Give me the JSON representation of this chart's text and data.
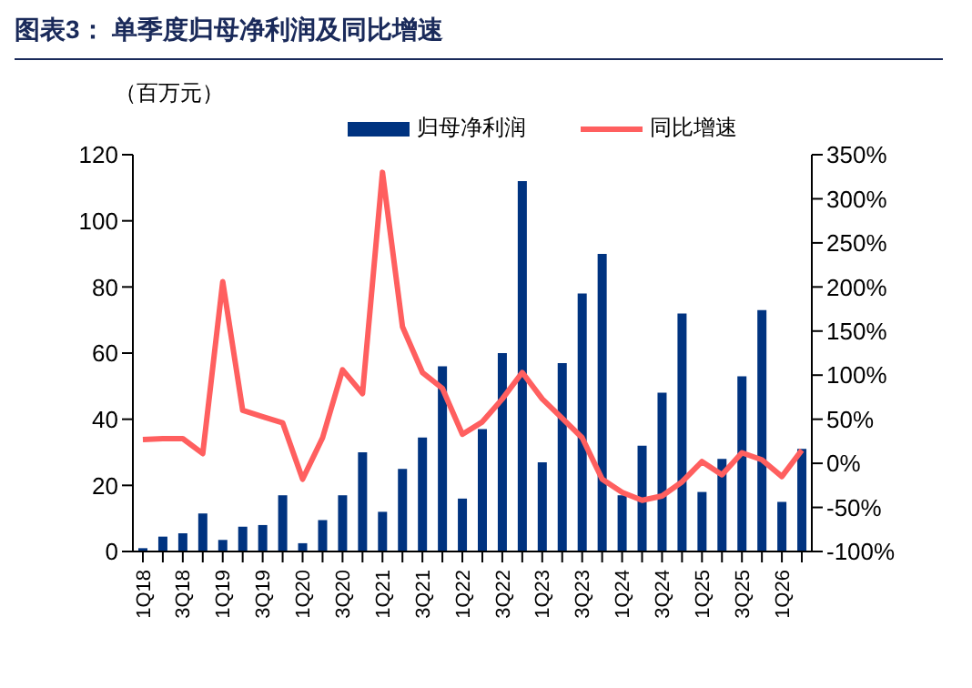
{
  "chart_data": {
    "type": "bar",
    "title": "图表3：  单季度归母净利润及同比增速",
    "ylabel": "（百万元）",
    "categories": [
      "1Q18",
      null,
      "3Q18",
      null,
      "1Q19",
      null,
      "3Q19",
      null,
      "1Q20",
      null,
      "3Q20",
      null,
      "1Q21",
      null,
      "3Q21",
      null,
      "1Q22",
      null,
      "3Q22",
      null,
      "1Q23",
      null,
      "3Q23",
      null,
      "1Q24",
      null,
      "3Q24",
      null,
      "1Q25",
      null,
      "3Q25",
      null,
      "1Q26",
      null
    ],
    "series": [
      {
        "name": "归母净利润",
        "color": "#003380",
        "values": [
          1,
          4.5,
          5.5,
          11.5,
          3.5,
          7.5,
          8,
          17,
          2.5,
          9.5,
          17,
          30,
          12,
          25,
          34.5,
          56,
          16,
          37,
          60,
          112,
          27,
          57,
          78,
          90,
          17,
          32,
          48,
          72,
          18,
          28,
          53,
          73,
          15,
          31
        ]
      },
      {
        "name": "同比增速",
        "type": "line",
        "axis": "y2",
        "color": "#ff5f5f",
        "values": [
          27,
          28,
          28,
          11,
          206,
          60,
          53,
          46,
          -18,
          29,
          106,
          79,
          330,
          155,
          103,
          85,
          33,
          47,
          73,
          103,
          73,
          51,
          29,
          -18,
          -33,
          -42,
          -37,
          -21,
          2,
          -13,
          12,
          4,
          -15,
          15
        ]
      }
    ],
    "ylim": [
      0,
      120
    ],
    "yticks": [
      0,
      20,
      40,
      60,
      80,
      100,
      120
    ],
    "y2lim": [
      -100,
      350
    ],
    "y2ticks": [
      {
        "value": -100,
        "label": "-100%"
      },
      {
        "value": -50,
        "label": "-50%"
      },
      {
        "value": 0,
        "label": "0%"
      },
      {
        "value": 50,
        "label": "50%"
      },
      {
        "value": 100,
        "label": "100%"
      },
      {
        "value": 150,
        "label": "150%"
      },
      {
        "value": 200,
        "label": "200%"
      },
      {
        "value": 250,
        "label": "250%"
      },
      {
        "value": 300,
        "label": "300%"
      },
      {
        "value": 350,
        "label": "350%"
      }
    ],
    "legend": "top",
    "grid": false,
    "marker": "none",
    "line_style": "solid"
  }
}
